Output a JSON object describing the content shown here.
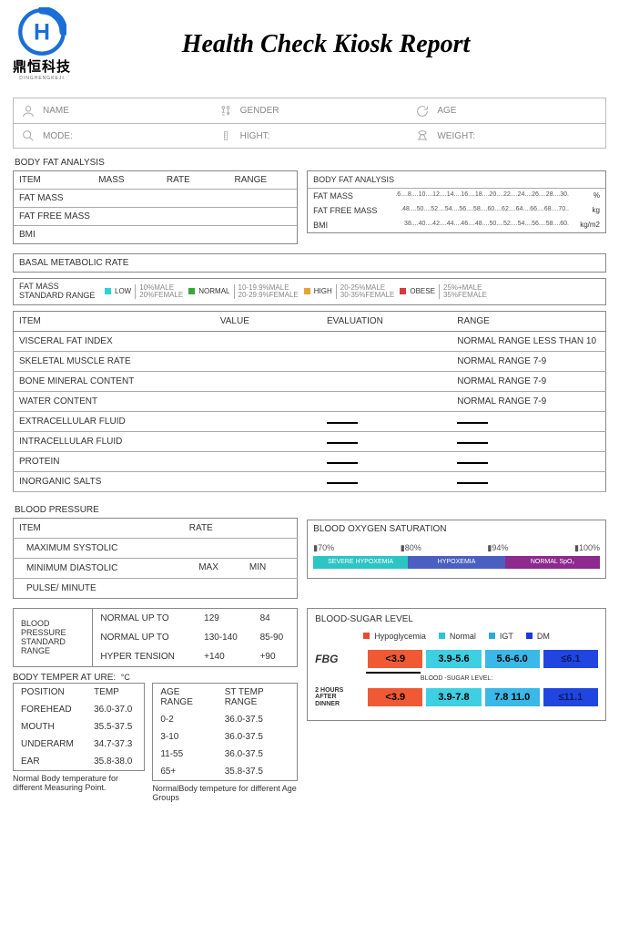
{
  "header": {
    "logo_chars": "鼎恒科技",
    "logo_pinyin": "DINGHENGKEJI",
    "title": "Health Check Kiosk Report"
  },
  "info": {
    "row1": {
      "c1": "NAME",
      "c2": "GENDER",
      "c3": "AGE"
    },
    "row2": {
      "c1": "MODE:",
      "c2": "HIGHT:",
      "c3": "WEIGHT:"
    }
  },
  "bfa": {
    "title": "BODY FAT ANALYSIS",
    "headers": [
      "ITEM",
      "MASS",
      "RATE",
      "RANGE"
    ],
    "rows": [
      "FAT MASS",
      "FAT FREE MASS",
      "BMI"
    ],
    "scale_title": "BODY FAT ANALYSIS",
    "scales": [
      {
        "label": "FAT MASS",
        "ticks": ".6....8....10....12....14....16....18....20....22....24....26....28....30.",
        "unit": "%"
      },
      {
        "label": "FAT FREE MASS",
        "ticks": ".48....50....52....54....56....58....60....62....64....66....68....70..",
        "unit": "kg"
      },
      {
        "label": "BMI",
        "ticks": "38....40....42....44....46....48....50....52....54....56....58....60.",
        "unit": "kg/m2"
      }
    ],
    "bmr": "BASAL METABOLIC RATE"
  },
  "legend": {
    "label": "FAT MASS STANDARD RANGE",
    "items": [
      {
        "name": "LOW",
        "color": "#2dd3d3",
        "pct": "10%MALE 20%FEMALE"
      },
      {
        "name": "NORMAL",
        "color": "#3aa63a",
        "pct": "10-19.9%MALE 20-29.9%FEMALE"
      },
      {
        "name": "HIGH",
        "color": "#e8a23a",
        "pct": "20-25%MALE 30-35%FEMALE"
      },
      {
        "name": "OBESE",
        "color": "#d63a3a",
        "pct": "25%+MALE 35%FEMALE"
      }
    ]
  },
  "eval": {
    "headers": [
      "ITEM",
      "VALUE",
      "EVALUATION",
      "RANGE"
    ],
    "rows": [
      {
        "item": "VISCERAL FAT INDEX",
        "range": "NORMAL RANGE LESS THAN 10"
      },
      {
        "item": "SKELETAL MUSCLE RATE",
        "range": "NORMAL RANGE 7-9"
      },
      {
        "item": "BONE MINERAL CONTENT",
        "range": "NORMAL RANGE 7-9"
      },
      {
        "item": "WATER CONTENT",
        "range": "NORMAL RANGE 7-9"
      }
    ],
    "dash_rows": [
      "EXTRACELLULAR  FLUID",
      "INTRACELLULAR  FLUID",
      "PROTEIN",
      "INORGANIC SALTS"
    ]
  },
  "bp": {
    "title": "BLOOD PRESSURE",
    "headers": [
      "ITEM",
      "RATE"
    ],
    "rows": [
      "MAXIMUM SYSTOLIC",
      "MINIMUM DIASTOLIC",
      "PULSE/ MINUTE"
    ]
  },
  "o2": {
    "title": "BLOOD OXYGEN SATURATION",
    "ticks": [
      "70%",
      "80%",
      "94%",
      "100%"
    ],
    "segs": [
      {
        "label": "SEVERE HYPOXEMIA",
        "color": "#2dc4c4",
        "w": 33
      },
      {
        "label": "HYPOXEMIA",
        "color": "#4a5fbf",
        "w": 34
      },
      {
        "label": "NORMAL SpO₂",
        "color": "#8d2a8d",
        "w": 33
      }
    ]
  },
  "bps": {
    "label": "BLOOD PRESSURE STANDARD RANGE",
    "cols": [
      "",
      "MAX",
      "MIN"
    ],
    "rows": [
      {
        "n": "NORMAL UP TO",
        "max": "129",
        "min": "84"
      },
      {
        "n": "NORMAL UP TO",
        "max": "130-140",
        "min": "85-90"
      },
      {
        "n": "HYPER TENSION",
        "max": "+140",
        "min": "+90"
      }
    ]
  },
  "temp": {
    "title": "BODY TEMPER AT URE:",
    "unit": "°C",
    "left": {
      "headers": [
        "POSITION",
        "TEMP"
      ],
      "rows": [
        {
          "p": "FOREHEAD",
          "t": "36.0-37.0"
        },
        {
          "p": "MOUTH",
          "t": "35.5-37.5"
        },
        {
          "p": "UNDERARM",
          "t": "34.7-37.3"
        },
        {
          "p": "EAR",
          "t": "35.8-38.0"
        }
      ],
      "note": "Normal Body temperature for different Measuring Point."
    },
    "right": {
      "headers": [
        "AGE RANGE",
        "ST TEMP RANGE"
      ],
      "rows": [
        {
          "a": "0-2",
          "t": "36.0-37.5"
        },
        {
          "a": "3-10",
          "t": "36.0-37.5"
        },
        {
          "a": "11-55",
          "t": "36.0-37.5"
        },
        {
          "a": "65+",
          "t": "35.8-37.5"
        }
      ],
      "note": "NormalBody tempeture for different Age Groups"
    }
  },
  "sugar": {
    "title": "BLOOD-SUGAR LEVEL",
    "legend": [
      {
        "name": "Hypoglycemia",
        "color": "#e84a2e"
      },
      {
        "name": "Normal",
        "color": "#2cc4d4"
      },
      {
        "name": "IGT",
        "color": "#2aa9e0"
      },
      {
        "name": "DM",
        "color": "#1a3ad6"
      }
    ],
    "mid": "BLOOD -SUGAR LEVEL:",
    "rows": [
      {
        "label": "FBG",
        "big": true,
        "cells": [
          {
            "v": "<3.9",
            "bg": "#ef5a34"
          },
          {
            "v": "3.9-5.6",
            "bg": "#3fcfe2"
          },
          {
            "v": "5.6-6.0",
            "bg": "#3ab8e8"
          },
          {
            "v": "≤6.1",
            "bg": "#2146e0",
            "fg": "#0a1a66"
          }
        ]
      },
      {
        "label": "2 HOURS AFTER DINNER",
        "big": false,
        "cells": [
          {
            "v": "<3.9",
            "bg": "#ef5a34"
          },
          {
            "v": "3.9-7.8",
            "bg": "#3fcfe2"
          },
          {
            "v": "7.8 11.0",
            "bg": "#3ab8e8"
          },
          {
            "v": "≤11.1",
            "bg": "#2146e0",
            "fg": "#0a1a66"
          }
        ]
      }
    ]
  }
}
